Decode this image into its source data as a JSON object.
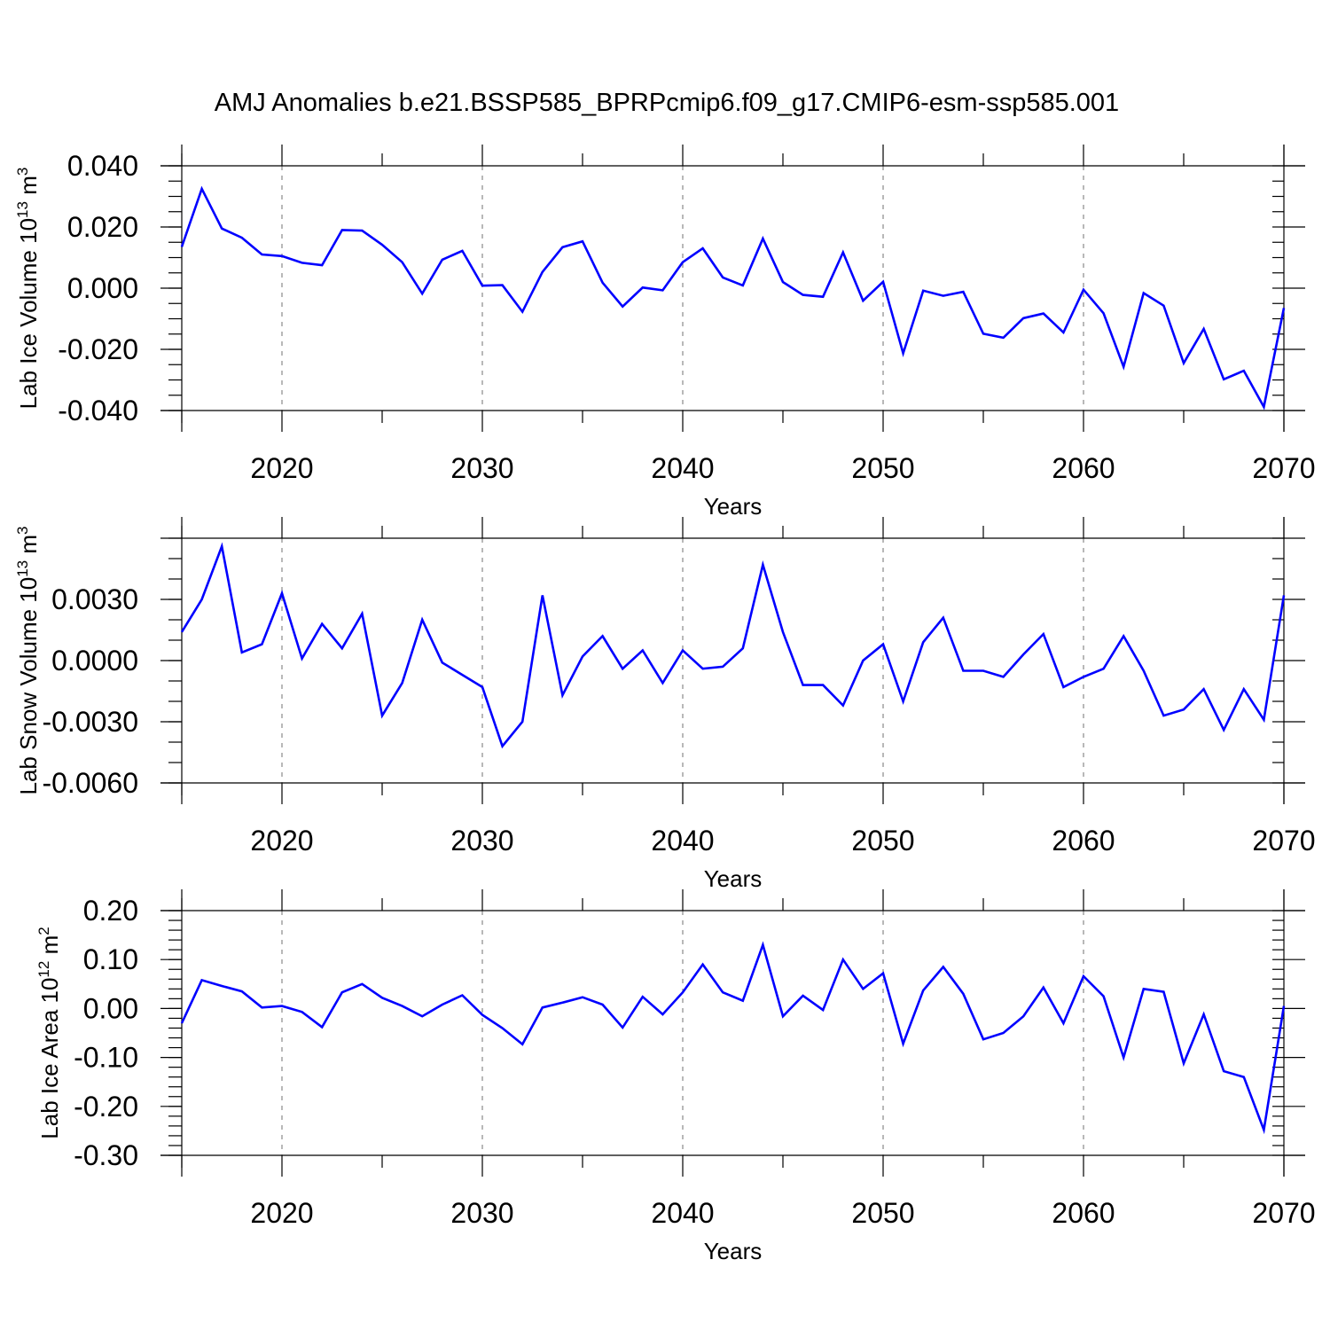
{
  "title": "AMJ Anomalies b.e21.BSSP585_BPRPcmip6.f09_g17.CMIP6-esm-ssp585.001",
  "colors": {
    "series": "#0000ff",
    "frame": "#000000",
    "grid": "#888888"
  },
  "chart_data": [
    {
      "type": "line",
      "xlabel": "Years",
      "ylabel": {
        "text": "Lab Ice Volume 10",
        "exp": "13",
        "unit": " m",
        "unit_exp": "3"
      },
      "xlim": [
        2015,
        2070
      ],
      "ylim": [
        -0.04,
        0.04
      ],
      "xticks": [
        2020,
        2030,
        2040,
        2050,
        2060,
        2070
      ],
      "xtick_labels": [
        "2020",
        "2030",
        "2040",
        "2050",
        "2060",
        "2070"
      ],
      "yticks": [
        0.04,
        0.02,
        0.0,
        -0.02,
        -0.04
      ],
      "ytick_labels": [
        "0.040",
        "0.020",
        "0.000",
        "-0.020",
        "-0.040"
      ],
      "ymajor_step": 0.02,
      "yminor_step": 0.005,
      "grid": "vertical dashed at decades",
      "x": [
        2015,
        2016,
        2017,
        2018,
        2019,
        2020,
        2021,
        2022,
        2023,
        2024,
        2025,
        2026,
        2027,
        2028,
        2029,
        2030,
        2031,
        2032,
        2033,
        2034,
        2035,
        2036,
        2037,
        2038,
        2039,
        2040,
        2041,
        2042,
        2043,
        2044,
        2045,
        2046,
        2047,
        2048,
        2049,
        2050,
        2051,
        2052,
        2053,
        2054,
        2055,
        2056,
        2057,
        2058,
        2059,
        2060,
        2061,
        2062,
        2063,
        2064,
        2065,
        2066,
        2067,
        2068,
        2069,
        2070
      ],
      "series": [
        {
          "values": [
            0.0135,
            0.0325,
            0.0195,
            0.0165,
            0.011,
            0.0105,
            0.0083,
            0.0075,
            0.019,
            0.0188,
            0.0142,
            0.0085,
            -0.0018,
            0.0093,
            0.0122,
            0.0008,
            0.001,
            -0.0077,
            0.0053,
            0.0134,
            0.0153,
            0.0018,
            -0.006,
            0.0002,
            -0.0007,
            0.0085,
            0.013,
            0.0035,
            0.0009,
            0.0162,
            0.002,
            -0.0022,
            -0.0028,
            0.0117,
            -0.0041,
            0.0021,
            -0.0213,
            -0.0008,
            -0.0025,
            -0.0012,
            -0.0149,
            -0.0162,
            -0.0098,
            -0.0083,
            -0.0145,
            -0.0005,
            -0.0082,
            -0.0257,
            -0.0016,
            -0.0057,
            -0.0245,
            -0.0133,
            -0.0298,
            -0.027,
            -0.0388,
            -0.0065
          ]
        }
      ]
    },
    {
      "type": "line",
      "xlabel": "Years",
      "ylabel": {
        "text": "Lab Snow Volume 10",
        "exp": "13",
        "unit": " m",
        "unit_exp": "3"
      },
      "xlim": [
        2015,
        2070
      ],
      "ylim": [
        -0.006,
        0.006
      ],
      "xticks": [
        2020,
        2030,
        2040,
        2050,
        2060,
        2070
      ],
      "xtick_labels": [
        "2020",
        "2030",
        "2040",
        "2050",
        "2060",
        "2070"
      ],
      "yticks": [
        0.003,
        0.0,
        -0.003,
        -0.006
      ],
      "ytick_labels": [
        "0.0030",
        "0.0000",
        "-0.0030",
        "-0.0060"
      ],
      "ymajor_step": 0.003,
      "yminor_step": 0.001,
      "grid": "vertical dashed at decades",
      "x": [
        2015,
        2016,
        2017,
        2018,
        2019,
        2020,
        2021,
        2022,
        2023,
        2024,
        2025,
        2026,
        2027,
        2028,
        2029,
        2030,
        2031,
        2032,
        2033,
        2034,
        2035,
        2036,
        2037,
        2038,
        2039,
        2040,
        2041,
        2042,
        2043,
        2044,
        2045,
        2046,
        2047,
        2048,
        2049,
        2050,
        2051,
        2052,
        2053,
        2054,
        2055,
        2056,
        2057,
        2058,
        2059,
        2060,
        2061,
        2062,
        2063,
        2064,
        2065,
        2066,
        2067,
        2068,
        2069,
        2070
      ],
      "series": [
        {
          "values": [
            0.0014,
            0.003,
            0.0056,
            0.0004,
            0.0008,
            0.0033,
            0.0001,
            0.0018,
            0.0006,
            0.0023,
            -0.0027,
            -0.0011,
            0.002,
            -0.0001,
            -0.0007,
            -0.0013,
            -0.0042,
            -0.003,
            0.0032,
            -0.0017,
            0.0002,
            0.0012,
            -0.0004,
            0.0005,
            -0.0011,
            0.0005,
            -0.0004,
            -0.0003,
            0.0006,
            0.0047,
            0.0014,
            -0.0012,
            -0.0012,
            -0.0022,
            0.0,
            0.0008,
            -0.002,
            0.0009,
            0.0021,
            -0.0005,
            -0.0005,
            -0.0008,
            0.0003,
            0.0013,
            -0.0013,
            -0.0008,
            -0.0004,
            0.0012,
            -0.0005,
            -0.0027,
            -0.0024,
            -0.0014,
            -0.0034,
            -0.0014,
            -0.0029,
            0.0032
          ]
        }
      ]
    },
    {
      "type": "line",
      "xlabel": "Years",
      "ylabel": {
        "text": "Lab Ice Area 10",
        "exp": "12",
        "unit": " m",
        "unit_exp": "2"
      },
      "xlim": [
        2015,
        2070
      ],
      "ylim": [
        -0.3,
        0.2
      ],
      "xticks": [
        2020,
        2030,
        2040,
        2050,
        2060,
        2070
      ],
      "xtick_labels": [
        "2020",
        "2030",
        "2040",
        "2050",
        "2060",
        "2070"
      ],
      "yticks": [
        0.2,
        0.1,
        0.0,
        -0.1,
        -0.2,
        -0.3
      ],
      "ytick_labels": [
        "0.20",
        "0.10",
        "0.00",
        "-0.10",
        "-0.20",
        "-0.30"
      ],
      "ymajor_step": 0.1,
      "yminor_step": 0.02,
      "grid": "vertical dashed at decades",
      "x": [
        2015,
        2016,
        2017,
        2018,
        2019,
        2020,
        2021,
        2022,
        2023,
        2024,
        2025,
        2026,
        2027,
        2028,
        2029,
        2030,
        2031,
        2032,
        2033,
        2034,
        2035,
        2036,
        2037,
        2038,
        2039,
        2040,
        2041,
        2042,
        2043,
        2044,
        2045,
        2046,
        2047,
        2048,
        2049,
        2050,
        2051,
        2052,
        2053,
        2054,
        2055,
        2056,
        2057,
        2058,
        2059,
        2060,
        2061,
        2062,
        2063,
        2064,
        2065,
        2066,
        2067,
        2068,
        2069,
        2070
      ],
      "series": [
        {
          "values": [
            -0.03,
            0.058,
            0.046,
            0.035,
            0.002,
            0.005,
            -0.007,
            -0.038,
            0.033,
            0.05,
            0.022,
            0.005,
            -0.016,
            0.008,
            0.027,
            -0.013,
            -0.04,
            -0.073,
            0.002,
            0.012,
            0.023,
            0.008,
            -0.039,
            0.024,
            -0.012,
            0.033,
            0.09,
            0.033,
            0.016,
            0.13,
            -0.016,
            0.026,
            -0.003,
            0.1,
            0.04,
            0.072,
            -0.072,
            0.037,
            0.085,
            0.03,
            -0.063,
            -0.05,
            -0.016,
            0.043,
            -0.03,
            0.066,
            0.025,
            -0.1,
            0.04,
            0.034,
            -0.112,
            -0.012,
            -0.128,
            -0.14,
            -0.248,
            0.005
          ]
        }
      ]
    }
  ]
}
